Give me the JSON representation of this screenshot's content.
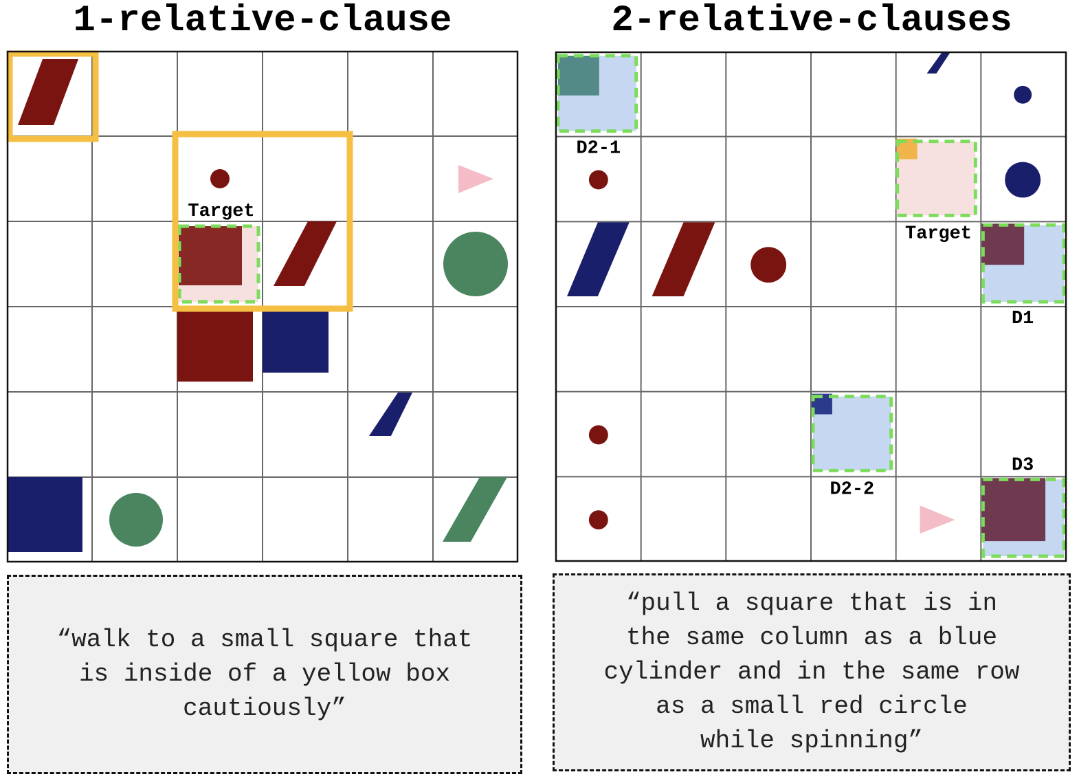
{
  "panels": {
    "left": {
      "title": "1-relative-clause",
      "caption": "“walk to a small square that\nis inside of a yellow box\ncautiously”",
      "labels": {
        "target": "Target"
      }
    },
    "right": {
      "title": "2-relative-clauses",
      "caption": "“pull a square that is in\nthe same column as a blue\ncylinder and in the same row\nas a small red circle\nwhile spinning”",
      "labels": {
        "d2_1": "D2-1",
        "target": "Target",
        "d1": "D1",
        "d2_2": "D2-2",
        "d3": "D3"
      }
    }
  },
  "colors": {
    "red": "#7a1410",
    "blue": "#1a1f6b",
    "green": "#4a8560",
    "pink": "#f4bcc6",
    "yellow": "#f5bf43",
    "highlight_green": "#7ddc5c",
    "light_blue": "#c6d7f2",
    "light_pink": "#f7e0e0",
    "grid_line": "#666666"
  }
}
